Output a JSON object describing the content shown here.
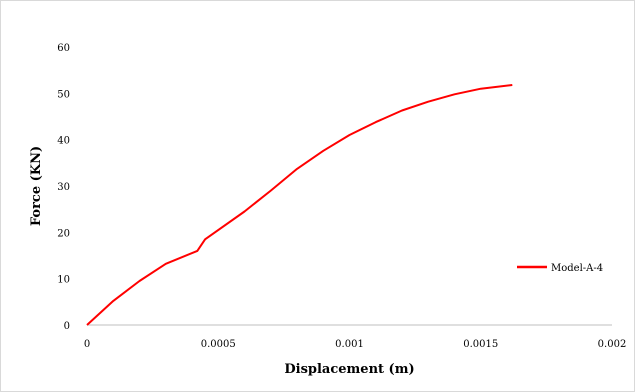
{
  "chart_data": {
    "type": "line",
    "title": "",
    "xlabel": "Displacement (m)",
    "ylabel": "Force (KN)",
    "xlim": [
      0,
      0.002
    ],
    "ylim": [
      0,
      60
    ],
    "x_ticks": [
      0,
      0.0005,
      0.001,
      0.0015,
      0.002
    ],
    "x_tick_labels": [
      "0",
      "0.0005",
      "0.001",
      "0.0015",
      "0.002"
    ],
    "y_ticks": [
      0,
      10,
      20,
      30,
      40,
      50,
      60
    ],
    "y_tick_labels": [
      "0",
      "10",
      "20",
      "30",
      "40",
      "50",
      "60"
    ],
    "grid": false,
    "legend": "right",
    "series": [
      {
        "name": "Model-A-4",
        "color": "#ff0000",
        "x": [
          0,
          0.0001,
          0.0002,
          0.0003,
          0.00042,
          0.00045,
          0.0006,
          0.0007,
          0.0008,
          0.0009,
          0.001,
          0.0011,
          0.0012,
          0.0013,
          0.0014,
          0.0015,
          0.00162
        ],
        "y": [
          0,
          5.2,
          9.5,
          13.2,
          16.0,
          18.5,
          24.5,
          29.0,
          33.7,
          37.6,
          41.0,
          43.8,
          46.3,
          48.2,
          49.8,
          51.0,
          51.8
        ]
      }
    ]
  }
}
